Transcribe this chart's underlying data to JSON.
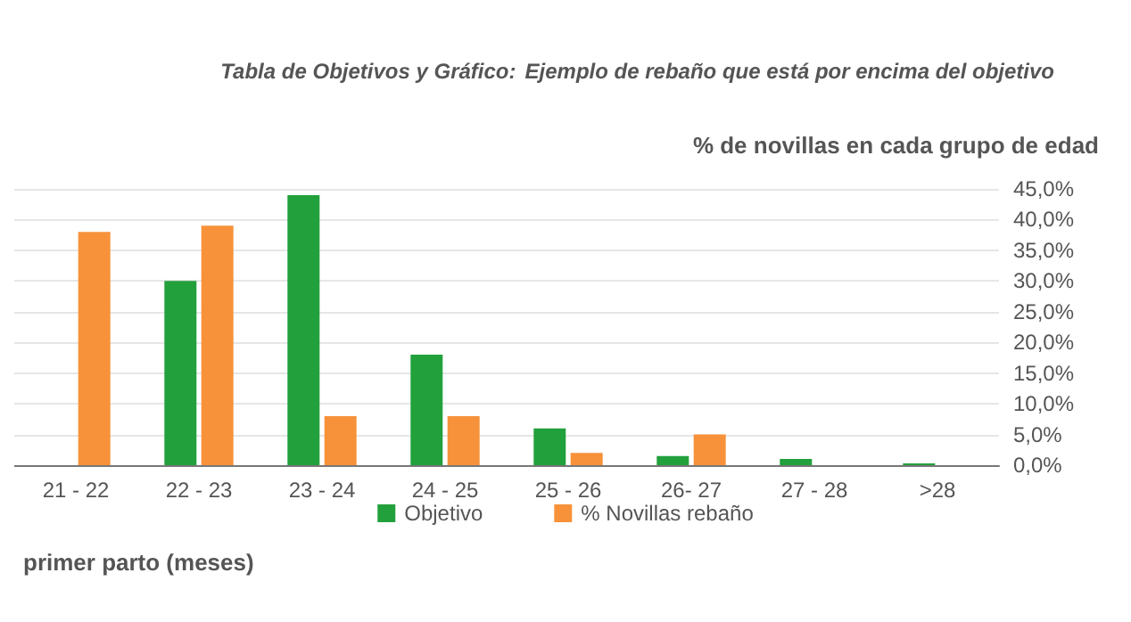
{
  "chart_data": {
    "type": "bar",
    "title": "Tabla de Objetivos y Gráfico:",
    "subtitle": "Ejemplo de rebaño que está por encima del objetivo",
    "ylabel": "% de novillas en cada grupo de edad",
    "xlabel": "primer parto (meses)",
    "categories": [
      "21 - 22",
      "22 - 23",
      "23 - 24",
      "24 - 25",
      "25 - 26",
      "26- 27",
      "27 - 28",
      ">28"
    ],
    "series": [
      {
        "name": "Objetivo",
        "color": "#22a03c",
        "values": [
          null,
          30,
          44,
          18,
          6,
          1.5,
          1,
          0.3
        ]
      },
      {
        "name": "% Novillas rebaño",
        "color": "#f7923a",
        "values": [
          38,
          39,
          8,
          8,
          2,
          5,
          null,
          null
        ]
      }
    ],
    "ylim": [
      0,
      45
    ],
    "yticks": [
      {
        "value": 0,
        "label": "0,0%"
      },
      {
        "value": 5,
        "label": "5,0%"
      },
      {
        "value": 10,
        "label": "10,0%"
      },
      {
        "value": 15,
        "label": "15,0%"
      },
      {
        "value": 20,
        "label": "20,0%"
      },
      {
        "value": 25,
        "label": "25,0%"
      },
      {
        "value": 30,
        "label": "30,0%"
      },
      {
        "value": 35,
        "label": "35,0%"
      },
      {
        "value": 40,
        "label": "40,0%"
      },
      {
        "value": 45,
        "label": "45,0%"
      }
    ],
    "grid": "y",
    "legend": "bottom"
  }
}
